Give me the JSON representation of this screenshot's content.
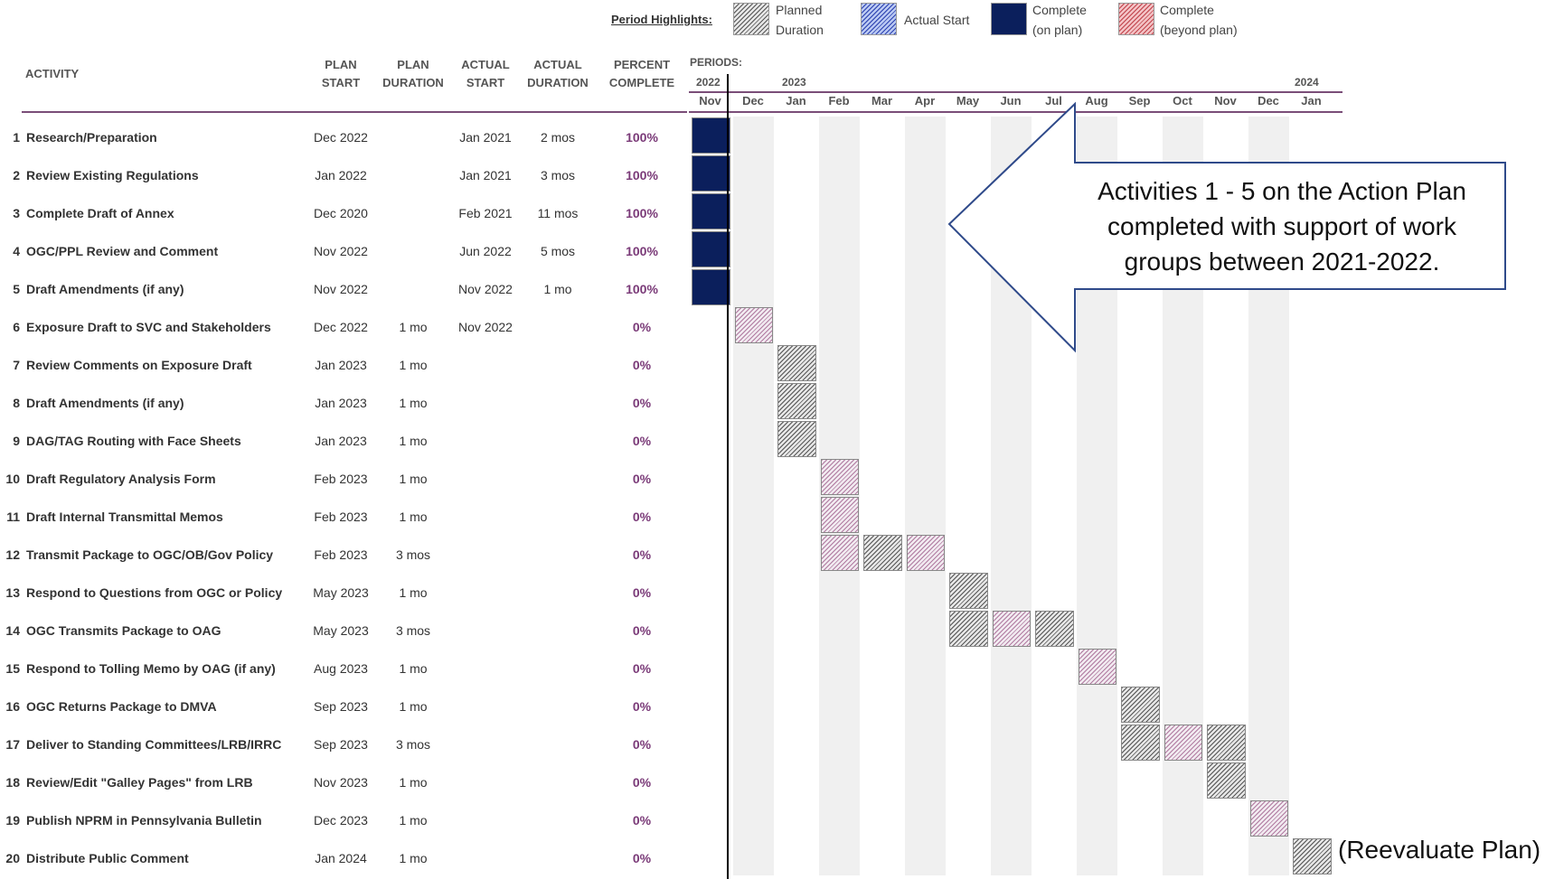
{
  "legend": {
    "title": "Period Highlights:",
    "planned": "Planned Duration",
    "actual_start": "Actual Start",
    "complete_on_plan": "Complete (on plan)",
    "complete_beyond": "Complete (beyond plan)"
  },
  "headers": {
    "activity": "ACTIVITY",
    "plan_start": [
      "PLAN",
      "START"
    ],
    "plan_duration": [
      "PLAN",
      "DURATION"
    ],
    "actual_start": [
      "ACTUAL",
      "START"
    ],
    "actual_duration": [
      "ACTUAL",
      "DURATION"
    ],
    "percent_complete": [
      "PERCENT",
      "COMPLETE"
    ],
    "periods": "PERIODS:"
  },
  "years": [
    "2022",
    "2023",
    "2024"
  ],
  "months": [
    "Nov",
    "Dec",
    "Jan",
    "Feb",
    "Mar",
    "Apr",
    "May",
    "Jun",
    "Jul",
    "Aug",
    "Sep",
    "Oct",
    "Nov",
    "Dec",
    "Jan"
  ],
  "callout": "Activities 1 - 5 on the Action Plan completed with support of work groups between 2021-2022.",
  "end_note": "(Reevaluate Plan)",
  "colors": {
    "complete": "#0b1f5c",
    "accent": "#7a4d78",
    "percent": "#7a3a78"
  },
  "chart_data": {
    "type": "table",
    "rows": [
      {
        "num": "1",
        "activity": "Research/Preparation",
        "plan_start": "Dec 2022",
        "plan_duration": "",
        "actual_start": "Jan 2021",
        "actual_duration": "2 mos",
        "percent": "100%"
      },
      {
        "num": "2",
        "activity": "Review Existing Regulations",
        "plan_start": "Jan 2022",
        "plan_duration": "",
        "actual_start": "Jan 2021",
        "actual_duration": "3 mos",
        "percent": "100%"
      },
      {
        "num": "3",
        "activity": "Complete Draft of Annex",
        "plan_start": "Dec 2020",
        "plan_duration": "",
        "actual_start": "Feb 2021",
        "actual_duration": "11 mos",
        "percent": "100%"
      },
      {
        "num": "4",
        "activity": "OGC/PPL Review and Comment",
        "plan_start": "Nov 2022",
        "plan_duration": "",
        "actual_start": "Jun 2022",
        "actual_duration": "5 mos",
        "percent": "100%"
      },
      {
        "num": "5",
        "activity": "Draft Amendments (if any)",
        "plan_start": "Nov 2022",
        "plan_duration": "",
        "actual_start": "Nov 2022",
        "actual_duration": "1 mo",
        "percent": "100%"
      },
      {
        "num": "6",
        "activity": "Exposure Draft to SVC and Stakeholders",
        "plan_start": "Dec 2022",
        "plan_duration": "1 mo",
        "actual_start": "Nov 2022",
        "actual_duration": "",
        "percent": "0%"
      },
      {
        "num": "7",
        "activity": "Review Comments on Exposure Draft",
        "plan_start": "Jan 2023",
        "plan_duration": "1 mo",
        "actual_start": "",
        "actual_duration": "",
        "percent": "0%"
      },
      {
        "num": "8",
        "activity": "Draft Amendments (if any)",
        "plan_start": "Jan 2023",
        "plan_duration": "1 mo",
        "actual_start": "",
        "actual_duration": "",
        "percent": "0%"
      },
      {
        "num": "9",
        "activity": "DAG/TAG Routing with Face Sheets",
        "plan_start": "Jan 2023",
        "plan_duration": "1 mo",
        "actual_start": "",
        "actual_duration": "",
        "percent": "0%"
      },
      {
        "num": "10",
        "activity": "Draft Regulatory Analysis Form",
        "plan_start": "Feb 2023",
        "plan_duration": "1 mo",
        "actual_start": "",
        "actual_duration": "",
        "percent": "0%"
      },
      {
        "num": "11",
        "activity": "Draft Internal Transmittal Memos",
        "plan_start": "Feb 2023",
        "plan_duration": "1 mo",
        "actual_start": "",
        "actual_duration": "",
        "percent": "0%"
      },
      {
        "num": "12",
        "activity": "Transmit Package to OGC/OB/Gov Policy",
        "plan_start": "Feb 2023",
        "plan_duration": "3 mos",
        "actual_start": "",
        "actual_duration": "",
        "percent": "0%"
      },
      {
        "num": "13",
        "activity": "Respond to Questions from OGC or Policy",
        "plan_start": "May 2023",
        "plan_duration": "1 mo",
        "actual_start": "",
        "actual_duration": "",
        "percent": "0%"
      },
      {
        "num": "14",
        "activity": "OGC Transmits Package to OAG",
        "plan_start": "May 2023",
        "plan_duration": "3 mos",
        "actual_start": "",
        "actual_duration": "",
        "percent": "0%"
      },
      {
        "num": "15",
        "activity": "Respond to Tolling Memo by OAG (if any)",
        "plan_start": "Aug 2023",
        "plan_duration": "1 mo",
        "actual_start": "",
        "actual_duration": "",
        "percent": "0%"
      },
      {
        "num": "16",
        "activity": "OGC Returns Package to DMVA",
        "plan_start": "Sep 2023",
        "plan_duration": "1 mo",
        "actual_start": "",
        "actual_duration": "",
        "percent": "0%"
      },
      {
        "num": "17",
        "activity": "Deliver to Standing Committees/LRB/IRRC",
        "plan_start": "Sep 2023",
        "plan_duration": "3 mos",
        "actual_start": "",
        "actual_duration": "",
        "percent": "0%"
      },
      {
        "num": "18",
        "activity": "Review/Edit \"Galley Pages\" from LRB",
        "plan_start": "Nov 2023",
        "plan_duration": "1 mo",
        "actual_start": "",
        "actual_duration": "",
        "percent": "0%"
      },
      {
        "num": "19",
        "activity": "Publish NPRM in Pennsylvania Bulletin",
        "plan_start": "Dec 2023",
        "plan_duration": "1 mo",
        "actual_start": "",
        "actual_duration": "",
        "percent": "0%"
      },
      {
        "num": "20",
        "activity": "Distribute Public Comment",
        "plan_start": "Jan 2024",
        "plan_duration": "1 mo",
        "actual_start": "",
        "actual_duration": "",
        "percent": "0%"
      }
    ],
    "bars": [
      {
        "row": 1,
        "start": "Nov 2022",
        "end": "Nov 2022",
        "kind": "complete"
      },
      {
        "row": 2,
        "start": "Nov 2022",
        "end": "Nov 2022",
        "kind": "complete"
      },
      {
        "row": 3,
        "start": "Nov 2022",
        "end": "Nov 2022",
        "kind": "complete"
      },
      {
        "row": 4,
        "start": "Nov 2022",
        "end": "Nov 2022",
        "kind": "complete"
      },
      {
        "row": 5,
        "start": "Nov 2022",
        "end": "Nov 2022",
        "kind": "complete"
      },
      {
        "row": 6,
        "start": "Dec 2022",
        "end": "Dec 2022",
        "kind": "planned-light"
      },
      {
        "row": 7,
        "start": "Jan 2023",
        "end": "Jan 2023",
        "kind": "planned"
      },
      {
        "row": 8,
        "start": "Jan 2023",
        "end": "Jan 2023",
        "kind": "planned"
      },
      {
        "row": 9,
        "start": "Jan 2023",
        "end": "Jan 2023",
        "kind": "planned"
      },
      {
        "row": 10,
        "start": "Feb 2023",
        "end": "Feb 2023",
        "kind": "planned-light"
      },
      {
        "row": 11,
        "start": "Feb 2023",
        "end": "Feb 2023",
        "kind": "planned-light"
      },
      {
        "row": 12,
        "start": "Feb 2023",
        "end": "Feb 2023",
        "kind": "planned-light"
      },
      {
        "row": 12,
        "start": "Mar 2023",
        "end": "Mar 2023",
        "kind": "planned"
      },
      {
        "row": 12,
        "start": "Apr 2023",
        "end": "Apr 2023",
        "kind": "planned-light"
      },
      {
        "row": 13,
        "start": "May 2023",
        "end": "May 2023",
        "kind": "planned"
      },
      {
        "row": 14,
        "start": "May 2023",
        "end": "May 2023",
        "kind": "planned"
      },
      {
        "row": 14,
        "start": "Jun 2023",
        "end": "Jun 2023",
        "kind": "planned-light"
      },
      {
        "row": 14,
        "start": "Jul 2023",
        "end": "Jul 2023",
        "kind": "planned"
      },
      {
        "row": 15,
        "start": "Aug 2023",
        "end": "Aug 2023",
        "kind": "planned-light"
      },
      {
        "row": 16,
        "start": "Sep 2023",
        "end": "Sep 2023",
        "kind": "planned"
      },
      {
        "row": 17,
        "start": "Sep 2023",
        "end": "Sep 2023",
        "kind": "planned"
      },
      {
        "row": 17,
        "start": "Oct 2023",
        "end": "Oct 2023",
        "kind": "planned-light"
      },
      {
        "row": 17,
        "start": "Nov 2023",
        "end": "Nov 2023",
        "kind": "planned"
      },
      {
        "row": 18,
        "start": "Nov 2023",
        "end": "Nov 2023",
        "kind": "planned"
      },
      {
        "row": 19,
        "start": "Dec 2023",
        "end": "Dec 2023",
        "kind": "planned-light"
      },
      {
        "row": 20,
        "start": "Jan 2024",
        "end": "Jan 2024",
        "kind": "planned"
      }
    ]
  }
}
